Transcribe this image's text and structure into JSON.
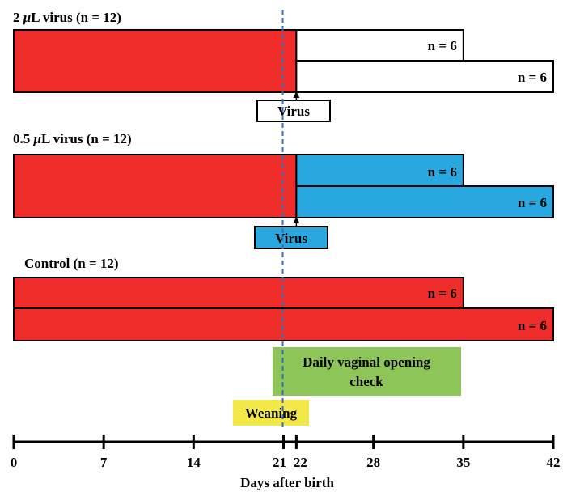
{
  "groups": [
    {
      "title_pre": "2 ",
      "title_mu": "μ",
      "title_post": "L virus (n = 12)",
      "pre_color": "#ee2d2a",
      "post_color": "#ffffff",
      "pre_range": [
        0,
        22
      ],
      "post_rows": [
        {
          "end_day": 35,
          "label": "n = 6"
        },
        {
          "end_day": 42,
          "label": "n = 6"
        }
      ],
      "virus_day": 22,
      "virus_label": "Virus",
      "virus_box_color": "#ffffff"
    },
    {
      "title_pre": "0.5 ",
      "title_mu": "μ",
      "title_post": "L virus (n = 12)",
      "pre_color": "#ee2d2a",
      "post_color": "#29a8e0",
      "pre_range": [
        0,
        22
      ],
      "post_rows": [
        {
          "end_day": 35,
          "label": "n = 6"
        },
        {
          "end_day": 42,
          "label": "n = 6"
        }
      ],
      "virus_day": 22,
      "virus_label": "Virus",
      "virus_box_color": "#29a8e0"
    },
    {
      "title": "Control (n = 12)",
      "pre_color": "#ee2d2a",
      "rows": [
        {
          "end_day": 35,
          "label": "n = 6"
        },
        {
          "end_day": 42,
          "label": "n = 6"
        }
      ]
    }
  ],
  "daily_check": {
    "line1": "Daily vaginal opening",
    "line2": "check",
    "color": "#8dc559"
  },
  "weaning": {
    "label": "Weaning",
    "day": 21,
    "color": "#f2e84a"
  },
  "axis": {
    "ticks": [
      "0",
      "7",
      "14",
      "21",
      "22",
      "28",
      "35",
      "42"
    ],
    "tick_days": [
      0,
      7,
      14,
      21,
      22,
      28,
      35,
      42
    ],
    "title": "Days after birth"
  },
  "colors": {
    "dashed_line": "#3a6fb8",
    "stroke": "#000000"
  }
}
